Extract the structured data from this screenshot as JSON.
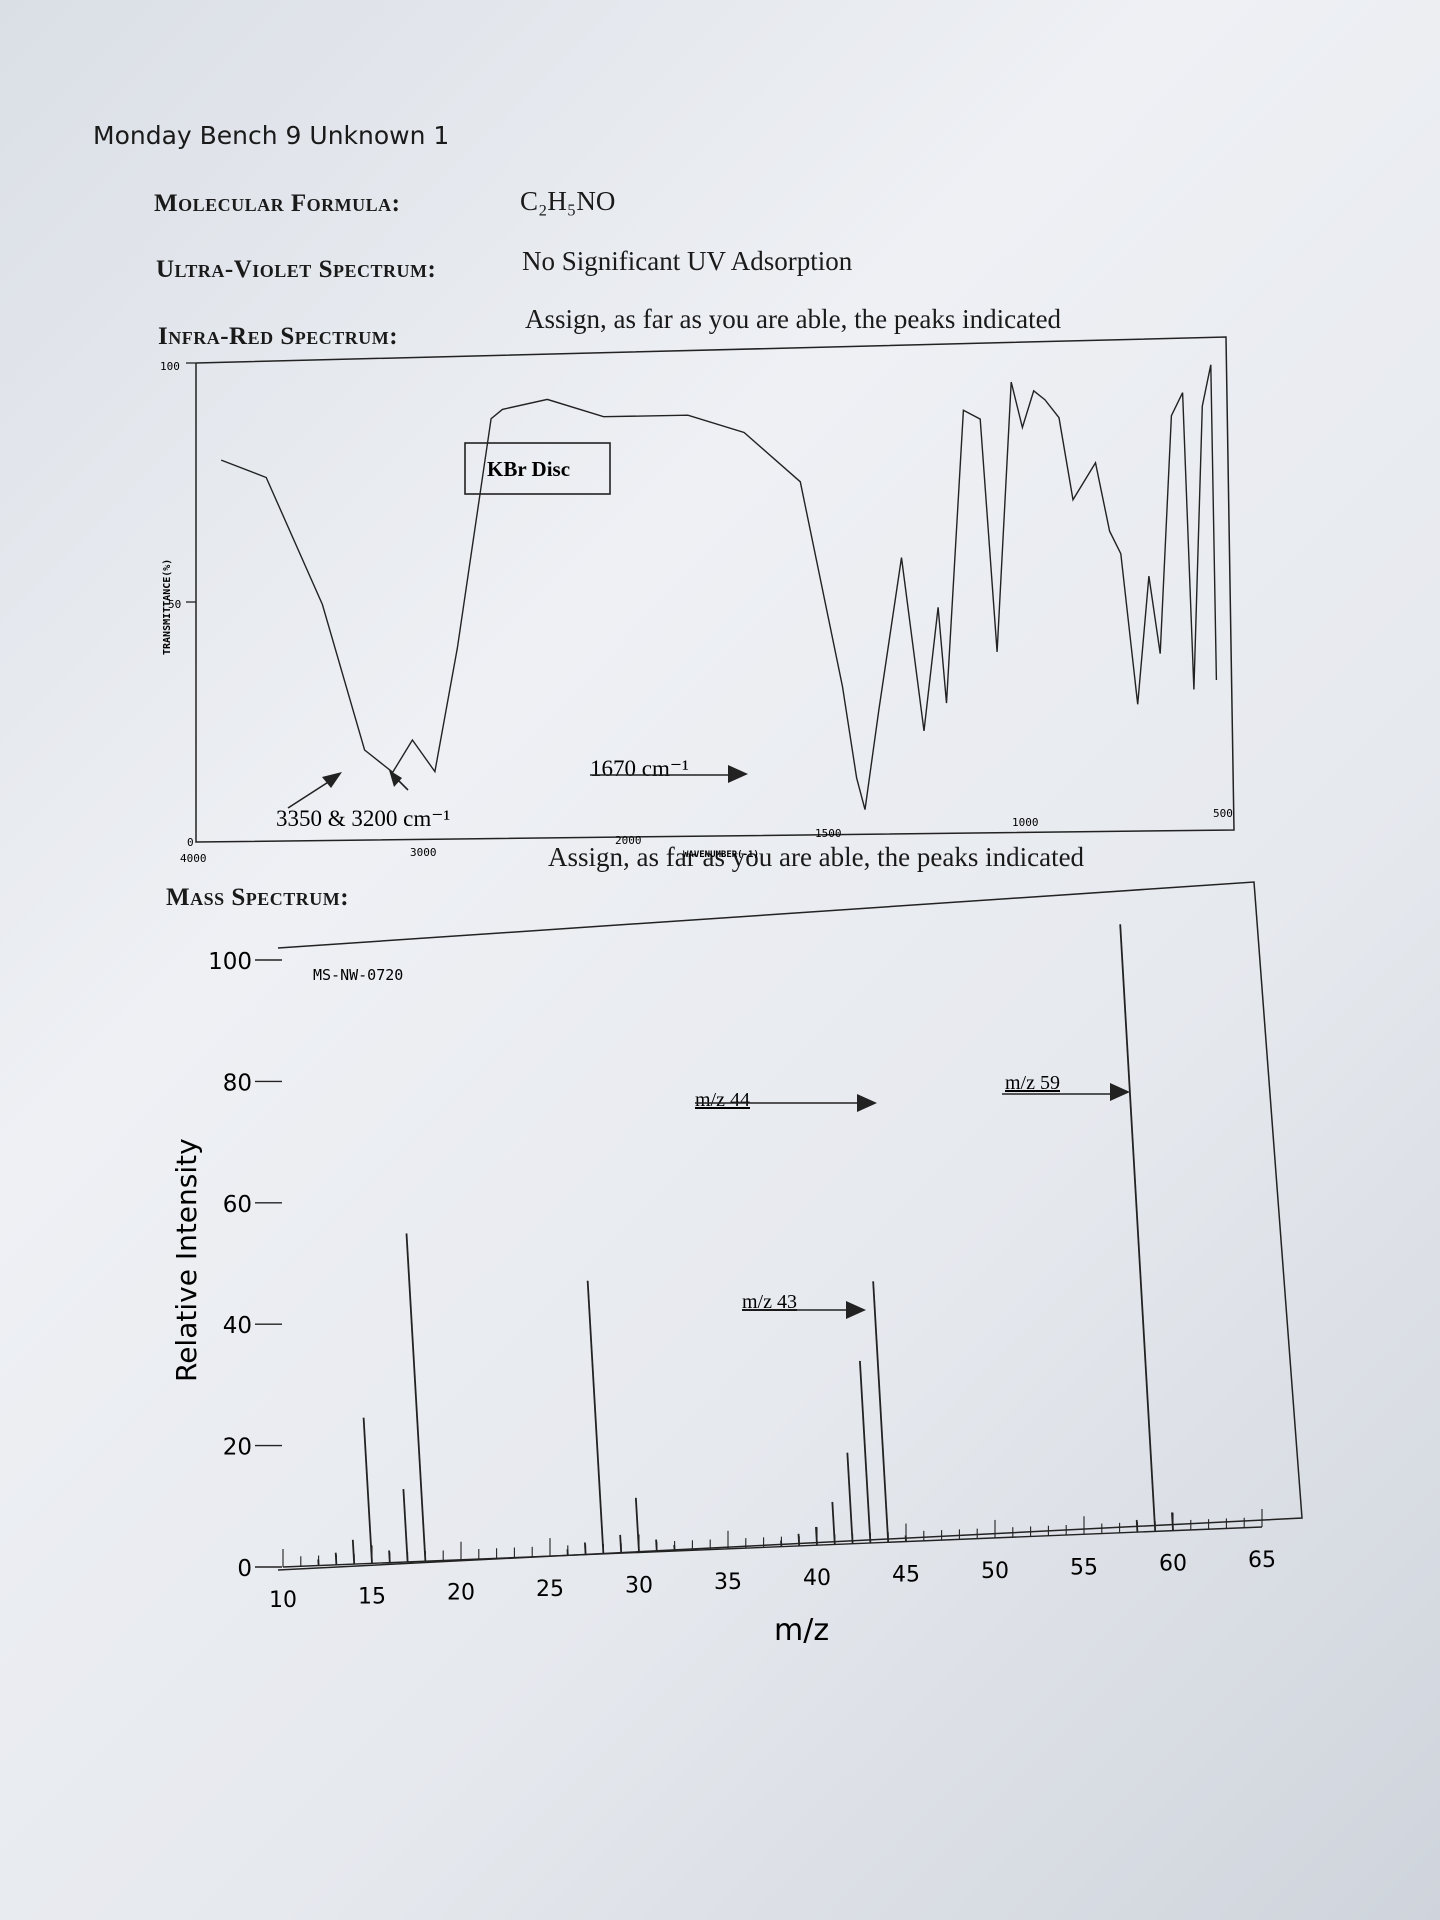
{
  "header": {
    "title": "Monday Bench 9 Unknown 1"
  },
  "molecular_formula": {
    "label": "Molecular Formula:",
    "value_html": "C₂H₅NO"
  },
  "uv": {
    "label": "Ultra-Violet Spectrum:",
    "value": "No Significant UV Adsorption"
  },
  "ir": {
    "label": "Infra-Red Spectrum:",
    "instruction": "Assign, as far as you are able, the peaks indicated",
    "method": "KBr Disc",
    "ylabel": "TRANSMITTANCE(%)",
    "xlabel": "WAVENUMBER(-1)",
    "yticks": [
      "100",
      "50",
      "0"
    ],
    "xticks": [
      "4000",
      "3000",
      "2000",
      "1500",
      "1000",
      "500"
    ],
    "annotations": {
      "nh": "3350 & 3200 cm⁻¹",
      "co": "1670 cm⁻¹"
    }
  },
  "ms": {
    "label": "Mass Spectrum:",
    "instruction": "Assign, as far as you are able, the peaks indicated",
    "code": "MS-NW-0720",
    "annotations": {
      "m44": "m/z 44",
      "m43": "m/z 43",
      "m59": "m/z 59"
    }
  },
  "chart_data": [
    {
      "type": "line",
      "ylabel": "TRANSMITTANCE(%)",
      "xlabel": "WAVENUMBER(-1)",
      "xlim": [
        4000,
        400
      ],
      "ylim": [
        0,
        100
      ],
      "x": [
        3960,
        3800,
        3600,
        3450,
        3350,
        3280,
        3200,
        3120,
        3000,
        2960,
        2800,
        2600,
        2300,
        2100,
        1900,
        1750,
        1700,
        1670,
        1620,
        1540,
        1460,
        1410,
        1380,
        1320,
        1260,
        1200,
        1150,
        1110,
        1070,
        1030,
        980,
        930,
        850,
        800,
        760,
        700,
        660,
        620,
        580,
        540,
        500,
        470,
        440,
        420
      ],
      "y": [
        82,
        78,
        50,
        18,
        13,
        20,
        13,
        40,
        90,
        92,
        94,
        90,
        90,
        86,
        75,
        30,
        10,
        3,
        25,
        58,
        20,
        47,
        26,
        90,
        88,
        37,
        96,
        86,
        94,
        92,
        88,
        70,
        78,
        63,
        58,
        25,
        53,
        36,
        88,
        93,
        28,
        90,
        99,
        30
      ]
    },
    {
      "type": "bar",
      "xlabel": "m/z",
      "ylabel": "Relative Intensity",
      "xlim": [
        10,
        65
      ],
      "ylim": [
        0,
        100
      ],
      "xticks": [
        10,
        15,
        20,
        25,
        30,
        35,
        40,
        45,
        50,
        55,
        60,
        65
      ],
      "yticks": [
        0,
        20,
        40,
        60,
        80,
        100
      ],
      "x": [
        12,
        13,
        14,
        15,
        16,
        17,
        18,
        26,
        27,
        28,
        29,
        30,
        31,
        32,
        38,
        39,
        40,
        41,
        42,
        43,
        44,
        45,
        58,
        59,
        60
      ],
      "values": [
        1,
        2,
        4,
        24,
        2,
        12,
        54,
        1,
        2,
        45,
        3,
        9,
        2,
        1,
        1,
        2,
        3,
        7,
        15,
        30,
        43,
        1,
        2,
        100,
        3
      ]
    }
  ]
}
